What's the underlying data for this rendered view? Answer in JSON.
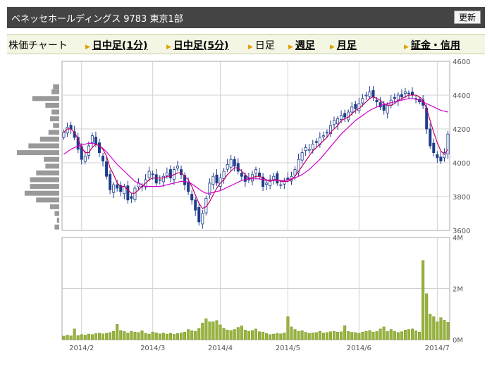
{
  "header": {
    "title": "ベネッセホールディングス 9783 東京1部",
    "refresh_label": "更新"
  },
  "nav": {
    "chart_label": "株価チャート",
    "items": [
      {
        "label": "日中足(1分)",
        "link": true
      },
      {
        "label": "日中足(5分)",
        "link": true
      },
      {
        "label": "日足",
        "link": false
      },
      {
        "label": "週足",
        "link": true
      },
      {
        "label": "月足",
        "link": true
      },
      {
        "label": "証金・信用",
        "link": true
      }
    ]
  },
  "colors": {
    "candle": "#1f3c8c",
    "ma_short": "#c0006a",
    "ma_long": "#d000d0",
    "volume": "#98b33a",
    "volume_outline": "#6a8a1a",
    "price_profile": "#999999",
    "grid": "#d0d0d0"
  },
  "chart_data": [
    {
      "type": "candlestick",
      "title": "",
      "x_tick_labels": [
        "2014/2",
        "2014/3",
        "2014/4",
        "2014/5",
        "2014/6",
        "2014/7"
      ],
      "x_tick_index": [
        5,
        25,
        44,
        63,
        83,
        105
      ],
      "y_ticks": [
        3600,
        3800,
        4000,
        4200,
        4400,
        4600
      ],
      "ylim": [
        3600,
        4600
      ],
      "grid": true,
      "closes": [
        4180,
        4210,
        4200,
        4150,
        4080,
        4020,
        4040,
        4100,
        4160,
        4110,
        4060,
        4010,
        3920,
        3840,
        3870,
        3850,
        3830,
        3860,
        3780,
        3790,
        3850,
        3880,
        3860,
        3900,
        3950,
        3930,
        3880,
        3900,
        3920,
        3940,
        3910,
        3960,
        3980,
        3930,
        3870,
        3830,
        3780,
        3720,
        3650,
        3700,
        3790,
        3880,
        3920,
        3880,
        3910,
        3950,
        3990,
        4020,
        3980,
        3950,
        3920,
        3890,
        3900,
        3930,
        3960,
        3920,
        3860,
        3880,
        3900,
        3920,
        3880,
        3870,
        3890,
        3900,
        3920,
        3960,
        4020,
        4060,
        4090,
        4080,
        4110,
        4120,
        4150,
        4160,
        4180,
        4220,
        4250,
        4260,
        4280,
        4270,
        4300,
        4330,
        4320,
        4350,
        4380,
        4400,
        4420,
        4390,
        4360,
        4330,
        4310,
        4340,
        4370,
        4380,
        4400,
        4390,
        4420,
        4410,
        4400,
        4380,
        4360,
        4340,
        4200,
        4100,
        4060,
        4030,
        4010,
        4060,
        4170
      ],
      "ma_short": [
        4180,
        4200,
        4200,
        4180,
        4140,
        4090,
        4060,
        4060,
        4090,
        4110,
        4100,
        4080,
        4040,
        3970,
        3930,
        3880,
        3860,
        3860,
        3840,
        3820,
        3820,
        3840,
        3860,
        3880,
        3900,
        3910,
        3910,
        3910,
        3910,
        3920,
        3920,
        3930,
        3940,
        3940,
        3920,
        3900,
        3860,
        3810,
        3760,
        3730,
        3740,
        3770,
        3810,
        3850,
        3880,
        3900,
        3930,
        3950,
        3970,
        3970,
        3950,
        3930,
        3910,
        3910,
        3920,
        3920,
        3910,
        3900,
        3890,
        3900,
        3900,
        3890,
        3890,
        3890,
        3900,
        3920,
        3950,
        3980,
        4010,
        4040,
        4070,
        4090,
        4110,
        4130,
        4150,
        4180,
        4200,
        4220,
        4250,
        4260,
        4270,
        4290,
        4310,
        4320,
        4340,
        4360,
        4380,
        4390,
        4380,
        4370,
        4350,
        4340,
        4340,
        4350,
        4370,
        4380,
        4390,
        4400,
        4400,
        4400,
        4390,
        4370,
        4320,
        4250,
        4180,
        4120,
        4070,
        4050,
        4080
      ],
      "ma_long": [
        4050,
        4065,
        4080,
        4090,
        4100,
        4105,
        4110,
        4115,
        4115,
        4110,
        4100,
        4085,
        4065,
        4040,
        4015,
        3990,
        3970,
        3950,
        3930,
        3910,
        3890,
        3880,
        3870,
        3860,
        3860,
        3860,
        3860,
        3860,
        3865,
        3870,
        3875,
        3880,
        3885,
        3890,
        3890,
        3885,
        3875,
        3860,
        3845,
        3830,
        3820,
        3820,
        3825,
        3830,
        3835,
        3845,
        3855,
        3865,
        3875,
        3885,
        3895,
        3900,
        3905,
        3905,
        3905,
        3905,
        3900,
        3895,
        3895,
        3895,
        3895,
        3895,
        3895,
        3900,
        3905,
        3910,
        3920,
        3930,
        3945,
        3960,
        3980,
        4000,
        4020,
        4045,
        4070,
        4095,
        4120,
        4145,
        4170,
        4190,
        4210,
        4230,
        4250,
        4265,
        4280,
        4295,
        4310,
        4320,
        4330,
        4340,
        4345,
        4350,
        4355,
        4360,
        4365,
        4370,
        4375,
        4380,
        4380,
        4375,
        4370,
        4360,
        4350,
        4340,
        4330,
        4320,
        4310,
        4305,
        4300
      ],
      "price_profile": [
        {
          "price": 4450,
          "volume": 8
        },
        {
          "price": 4420,
          "volume": 10
        },
        {
          "price": 4380,
          "volume": 35
        },
        {
          "price": 4340,
          "volume": 18
        },
        {
          "price": 4300,
          "volume": 10
        },
        {
          "price": 4260,
          "volume": 12
        },
        {
          "price": 4220,
          "volume": 8
        },
        {
          "price": 4180,
          "volume": 14
        },
        {
          "price": 4140,
          "volume": 25
        },
        {
          "price": 4100,
          "volume": 40
        },
        {
          "price": 4060,
          "volume": 55
        },
        {
          "price": 4020,
          "volume": 20
        },
        {
          "price": 3980,
          "volume": 18
        },
        {
          "price": 3940,
          "volume": 30
        },
        {
          "price": 3900,
          "volume": 38
        },
        {
          "price": 3860,
          "volume": 38
        },
        {
          "price": 3820,
          "volume": 45
        },
        {
          "price": 3780,
          "volume": 30
        },
        {
          "price": 3740,
          "volume": 12
        },
        {
          "price": 3700,
          "volume": 6
        },
        {
          "price": 3660,
          "volume": 3
        },
        {
          "price": 3620,
          "volume": 6
        }
      ]
    },
    {
      "type": "bar",
      "title": "",
      "y_tick_labels": [
        "0M",
        "2M",
        "4M"
      ],
      "y_ticks": [
        0,
        2000000,
        4000000
      ],
      "ylim": [
        0,
        4000000
      ],
      "grid": true,
      "values": [
        140000,
        180000,
        150000,
        420000,
        160000,
        200000,
        180000,
        220000,
        200000,
        240000,
        260000,
        230000,
        250000,
        280000,
        330000,
        600000,
        360000,
        320000,
        260000,
        330000,
        300000,
        280000,
        350000,
        250000,
        220000,
        300000,
        270000,
        230000,
        260000,
        220000,
        250000,
        210000,
        240000,
        270000,
        300000,
        400000,
        350000,
        330000,
        440000,
        650000,
        820000,
        700000,
        700000,
        750000,
        580000,
        450000,
        380000,
        360000,
        400000,
        480000,
        540000,
        380000,
        330000,
        360000,
        420000,
        310000,
        300000,
        240000,
        200000,
        220000,
        250000,
        230000,
        270000,
        900000,
        500000,
        400000,
        330000,
        350000,
        290000,
        250000,
        270000,
        280000,
        330000,
        260000,
        280000,
        310000,
        330000,
        300000,
        310000,
        550000,
        320000,
        290000,
        280000,
        250000,
        300000,
        330000,
        360000,
        300000,
        320000,
        420000,
        500000,
        320000,
        400000,
        330000,
        280000,
        310000,
        380000,
        400000,
        420000,
        350000,
        300000,
        3100000,
        1800000,
        1000000,
        900000,
        700000,
        860000,
        760000,
        680000
      ]
    }
  ]
}
